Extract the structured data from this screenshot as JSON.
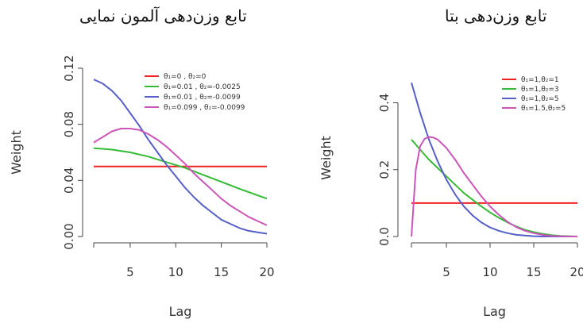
{
  "chart_data": [
    {
      "type": "line",
      "title": "تابع وزن‌دهی آلمون نمایی",
      "xlabel": "Lag",
      "ylabel": "Weight",
      "xlim": [
        1,
        20
      ],
      "ylim": [
        0,
        0.12
      ],
      "xticks": [
        "5",
        "10",
        "15",
        "20"
      ],
      "yticks": [
        "0.00",
        "0.04",
        "0.08",
        "0.12"
      ],
      "legend_position": "top-right",
      "series": [
        {
          "name": "θ₁=0 , θ₂=0",
          "color": "#ee2222",
          "x": [
            1,
            20
          ],
          "y": [
            0.05,
            0.05
          ]
        },
        {
          "name": "θ₁=0.01 , θ₂=-0.0025",
          "color": "#33bb33",
          "x": [
            1,
            3,
            5,
            7,
            9,
            11,
            13,
            15,
            17,
            20
          ],
          "y": [
            0.063,
            0.062,
            0.06,
            0.057,
            0.053,
            0.049,
            0.044,
            0.039,
            0.034,
            0.027
          ]
        },
        {
          "name": "θ₁=0.01 , θ₂=-0.0099",
          "color": "#5560c8",
          "x": [
            1,
            2,
            3,
            4,
            5,
            6,
            7,
            8,
            9,
            10,
            11,
            12,
            13,
            14,
            15,
            16,
            17,
            18,
            19,
            20
          ],
          "y": [
            0.112,
            0.109,
            0.104,
            0.097,
            0.088,
            0.079,
            0.069,
            0.06,
            0.051,
            0.043,
            0.035,
            0.028,
            0.022,
            0.017,
            0.012,
            0.009,
            0.006,
            0.004,
            0.003,
            0.002
          ]
        },
        {
          "name": "θ₁=0.099 , θ₂=-0.0099",
          "color": "#cc55bb",
          "x": [
            1,
            2,
            3,
            4,
            5,
            6,
            7,
            8,
            9,
            10,
            11,
            12,
            13,
            14,
            15,
            16,
            17,
            18,
            19,
            20
          ],
          "y": [
            0.067,
            0.071,
            0.075,
            0.077,
            0.077,
            0.076,
            0.073,
            0.069,
            0.064,
            0.058,
            0.052,
            0.045,
            0.039,
            0.033,
            0.027,
            0.022,
            0.018,
            0.014,
            0.011,
            0.008
          ]
        }
      ]
    },
    {
      "type": "line",
      "title": "تابع وزن‌دهی بتا",
      "xlabel": "Lag",
      "ylabel": "Weight",
      "xlim": [
        1,
        20
      ],
      "ylim": [
        0,
        0.47
      ],
      "xticks": [
        "5",
        "10",
        "15",
        "20"
      ],
      "yticks": [
        "0.0",
        "0.2",
        "0.4"
      ],
      "legend_position": "top-right",
      "series": [
        {
          "name": "θ₁=1,θ₂=1",
          "color": "#ee2222",
          "x": [
            1,
            20
          ],
          "y": [
            0.1,
            0.1
          ]
        },
        {
          "name": "θ₁=1,θ₂=3",
          "color": "#33bb33",
          "x": [
            1,
            2,
            3,
            4,
            5,
            6,
            7,
            8,
            9,
            10,
            11,
            12,
            13,
            14,
            15,
            16,
            17,
            18,
            19,
            20
          ],
          "y": [
            0.29,
            0.26,
            0.23,
            0.205,
            0.18,
            0.155,
            0.13,
            0.11,
            0.09,
            0.072,
            0.056,
            0.042,
            0.03,
            0.02,
            0.013,
            0.008,
            0.004,
            0.002,
            0.001,
            0
          ]
        },
        {
          "name": "θ₁=1,θ₂=5",
          "color": "#5560c8",
          "x": [
            1,
            2,
            3,
            4,
            5,
            6,
            7,
            8,
            9,
            10,
            11,
            12,
            13,
            14,
            15,
            16,
            17,
            18,
            19,
            20
          ],
          "y": [
            0.46,
            0.37,
            0.29,
            0.225,
            0.17,
            0.126,
            0.09,
            0.063,
            0.042,
            0.027,
            0.017,
            0.01,
            0.005,
            0.003,
            0.001,
            0,
            0,
            0,
            0,
            0
          ]
        },
        {
          "name": "θ₁=1.5,θ₂=5",
          "color": "#cc55bb",
          "x": [
            1,
            1.5,
            2,
            2.5,
            3,
            3.5,
            4,
            5,
            6,
            7,
            8,
            9,
            10,
            11,
            12,
            13,
            14,
            15,
            16,
            17,
            18,
            19,
            20
          ],
          "y": [
            0.0,
            0.2,
            0.27,
            0.292,
            0.298,
            0.296,
            0.29,
            0.265,
            0.23,
            0.19,
            0.155,
            0.12,
            0.09,
            0.065,
            0.044,
            0.028,
            0.017,
            0.01,
            0.005,
            0.002,
            0.001,
            0,
            0
          ]
        }
      ]
    }
  ]
}
